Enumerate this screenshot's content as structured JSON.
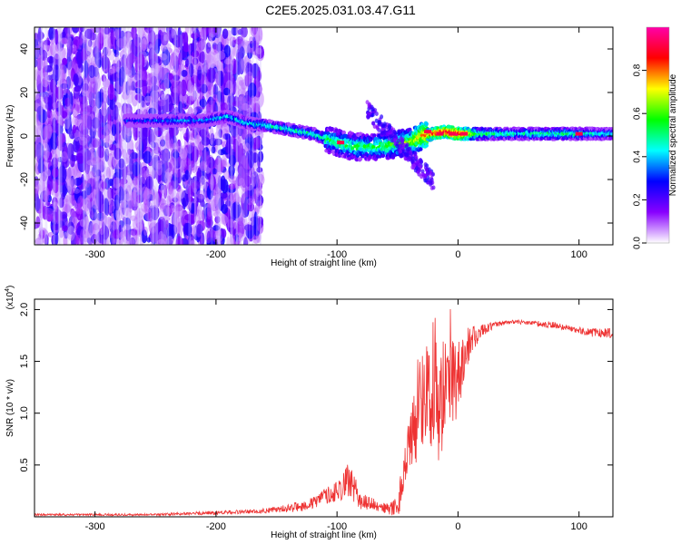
{
  "title": "C2E5.2025.031.03.47.G11",
  "chart_data": [
    {
      "type": "heatmap",
      "title": "C2E5.2025.031.03.47.G11",
      "xlabel": "Height of straight line (km)",
      "ylabel": "Frequency (Hz)",
      "xlim": [
        -350,
        128
      ],
      "ylim": [
        -50,
        50
      ],
      "x_ticks": [
        -300,
        -200,
        -100,
        0,
        100
      ],
      "y_ticks": [
        -40,
        -20,
        0,
        20,
        40
      ],
      "colorbar": {
        "label": "Normalized spectral amplitude",
        "range": [
          0,
          1
        ],
        "ticks": [
          0.0,
          0.2,
          0.4,
          0.6,
          0.8
        ],
        "colors": [
          "#ffffff",
          "#8800ff",
          "#0000ff",
          "#00ffff",
          "#00ff00",
          "#ffff00",
          "#ff0000",
          "#ff00aa"
        ]
      },
      "noise_region": {
        "x_range": [
          -350,
          -163
        ],
        "level": 0.15
      },
      "signal_track": {
        "x": [
          -275,
          -250,
          -230,
          -210,
          -190,
          -175,
          -160,
          -140,
          -120,
          -100,
          -85,
          -70,
          -55,
          -40,
          -30,
          -20,
          -10,
          0,
          20,
          50,
          80,
          110,
          128
        ],
        "y": [
          7,
          7,
          7,
          7,
          9,
          6,
          5,
          3,
          1,
          -3,
          -5,
          -5,
          -4,
          -3,
          0,
          1,
          2,
          1,
          1,
          1,
          1,
          1,
          1
        ],
        "amplitude": [
          0.3,
          0.35,
          0.4,
          0.4,
          0.45,
          0.45,
          0.5,
          0.5,
          0.5,
          0.55,
          0.55,
          0.55,
          0.6,
          0.65,
          0.75,
          0.85,
          0.9,
          0.95,
          0.55,
          0.5,
          0.55,
          0.5,
          0.45
        ]
      }
    },
    {
      "type": "line",
      "xlabel": "Height of straight line (km)",
      "ylabel": "SNR (10 * v/v)",
      "y_multiplier": "(x10",
      "y_exponent": "4",
      "y_multiplier_close": ")",
      "xlim": [
        -350,
        128
      ],
      "ylim": [
        0,
        2.1
      ],
      "x_ticks": [
        -300,
        -200,
        -100,
        0,
        100
      ],
      "y_ticks": [
        0.5,
        1.0,
        1.5,
        2.0
      ],
      "y_tick_labels": [
        "0.5",
        "1.0",
        "1.5",
        "2.0"
      ],
      "series": [
        {
          "color": "#ee3333",
          "x": [
            -350,
            -300,
            -250,
            -200,
            -170,
            -150,
            -130,
            -120,
            -110,
            -100,
            -90,
            -80,
            -70,
            -60,
            -50,
            -45,
            -40,
            -35,
            -30,
            -25,
            -20,
            -15,
            -10,
            -5,
            0,
            10,
            20,
            30,
            40,
            50,
            60,
            70,
            80,
            90,
            100,
            110,
            120,
            128
          ],
          "y": [
            0.02,
            0.02,
            0.02,
            0.04,
            0.05,
            0.07,
            0.1,
            0.13,
            0.2,
            0.25,
            0.35,
            0.15,
            0.12,
            0.08,
            0.1,
            0.35,
            0.6,
            0.95,
            1.15,
            1.2,
            1.3,
            1.05,
            1.3,
            1.25,
            1.35,
            1.7,
            1.8,
            1.85,
            1.88,
            1.88,
            1.87,
            1.86,
            1.85,
            1.82,
            1.8,
            1.78,
            1.77,
            1.77
          ],
          "noise": [
            0.01,
            0.01,
            0.01,
            0.02,
            0.02,
            0.03,
            0.05,
            0.06,
            0.08,
            0.1,
            0.18,
            0.08,
            0.06,
            0.05,
            0.1,
            0.25,
            0.35,
            0.45,
            0.5,
            0.55,
            0.6,
            0.55,
            0.5,
            0.45,
            0.35,
            0.15,
            0.06,
            0.03,
            0.02,
            0.02,
            0.02,
            0.03,
            0.03,
            0.03,
            0.03,
            0.04,
            0.05,
            0.05
          ]
        }
      ]
    }
  ]
}
